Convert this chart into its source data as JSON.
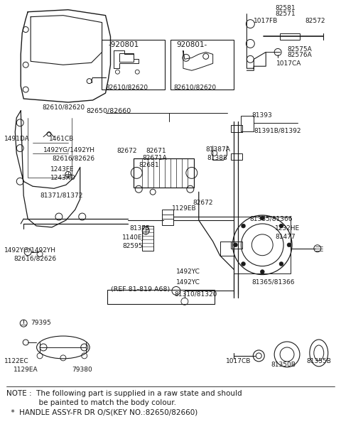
{
  "bg_color": "#ffffff",
  "line_color": "#1a1a1a",
  "font_size": 7.0,
  "font_size_note": 7.5,
  "note_line1": "NOTE :  The following part is supplied in a raw state and should",
  "note_line2": "              be painted to match the body colour.",
  "note_line3": "  *  HANDLE ASSY-FR DR O/S(KEY NO.:82650/82660)"
}
